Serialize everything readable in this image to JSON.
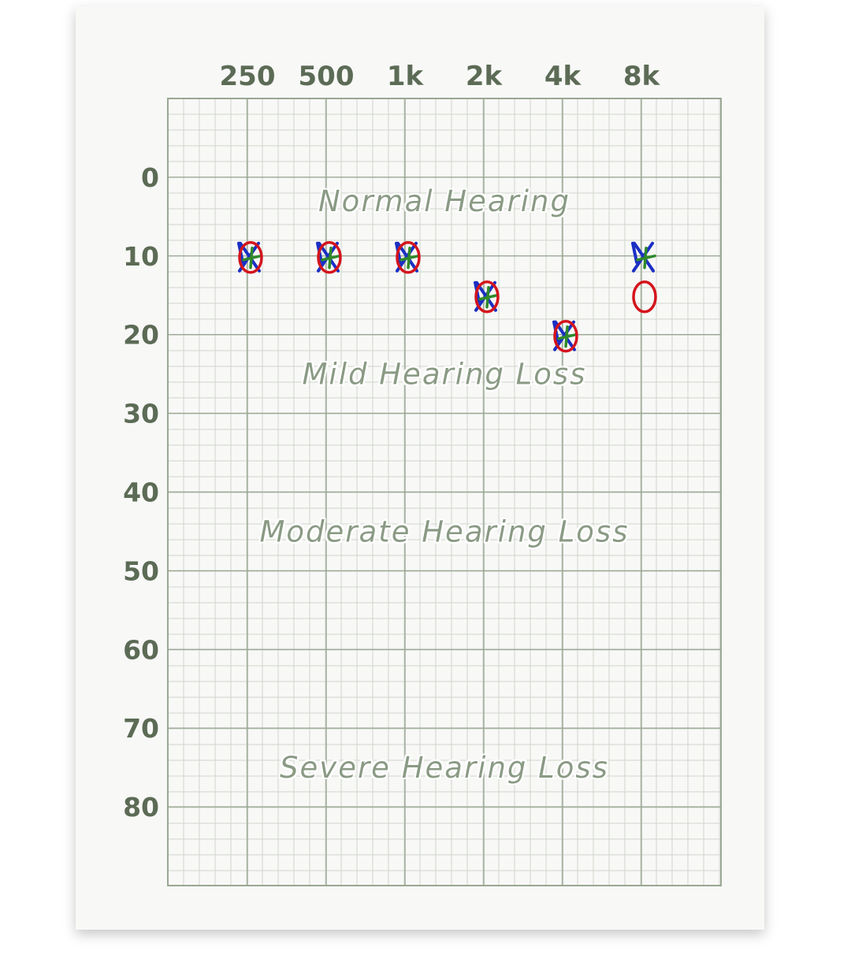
{
  "chart_data": {
    "type": "scatter",
    "title": "",
    "xlabel": "",
    "ylabel": "",
    "x_scale": "log2",
    "y_inverted": true,
    "grid": true,
    "x_ticks": [
      "250",
      "500",
      "1k",
      "2k",
      "4k",
      "8k"
    ],
    "x_tick_values": [
      250,
      500,
      1000,
      2000,
      4000,
      8000
    ],
    "y_ticks": [
      "0",
      "10",
      "20",
      "30",
      "40",
      "50",
      "60",
      "70",
      "80"
    ],
    "y_tick_values": [
      0,
      10,
      20,
      30,
      40,
      50,
      60,
      70,
      80
    ],
    "ylim": [
      -10,
      90
    ],
    "regions": [
      {
        "label": "Normal Hearing",
        "y": 3
      },
      {
        "label": "Mild Hearing Loss",
        "y": 25
      },
      {
        "label": "Moderate Hearing Loss",
        "y": 45
      },
      {
        "label": "Severe Hearing Loss",
        "y": 75
      }
    ],
    "series": [
      {
        "marker": "O",
        "color": "#d4141c",
        "x": [
          250,
          500,
          1000,
          2000,
          4000,
          8000
        ],
        "y": [
          10,
          10,
          10,
          15,
          20,
          15
        ]
      },
      {
        "marker": "X",
        "color": "#1b2fc4",
        "x": [
          250,
          500,
          1000,
          2000,
          4000,
          8000
        ],
        "y": [
          10,
          10,
          10,
          15,
          20,
          10
        ]
      },
      {
        "marker": "mark",
        "color": "#2f8a2a",
        "x": [
          250,
          500,
          1000,
          2000,
          4000,
          8000
        ],
        "y": [
          10,
          10,
          10,
          15,
          20,
          10
        ]
      }
    ]
  },
  "colors": {
    "grid_major": "#9aa793",
    "grid_minor": "#cfd6cb",
    "label": "#5c6b55",
    "region_label": "#8a9a84",
    "paper": "#f8f8f7"
  }
}
